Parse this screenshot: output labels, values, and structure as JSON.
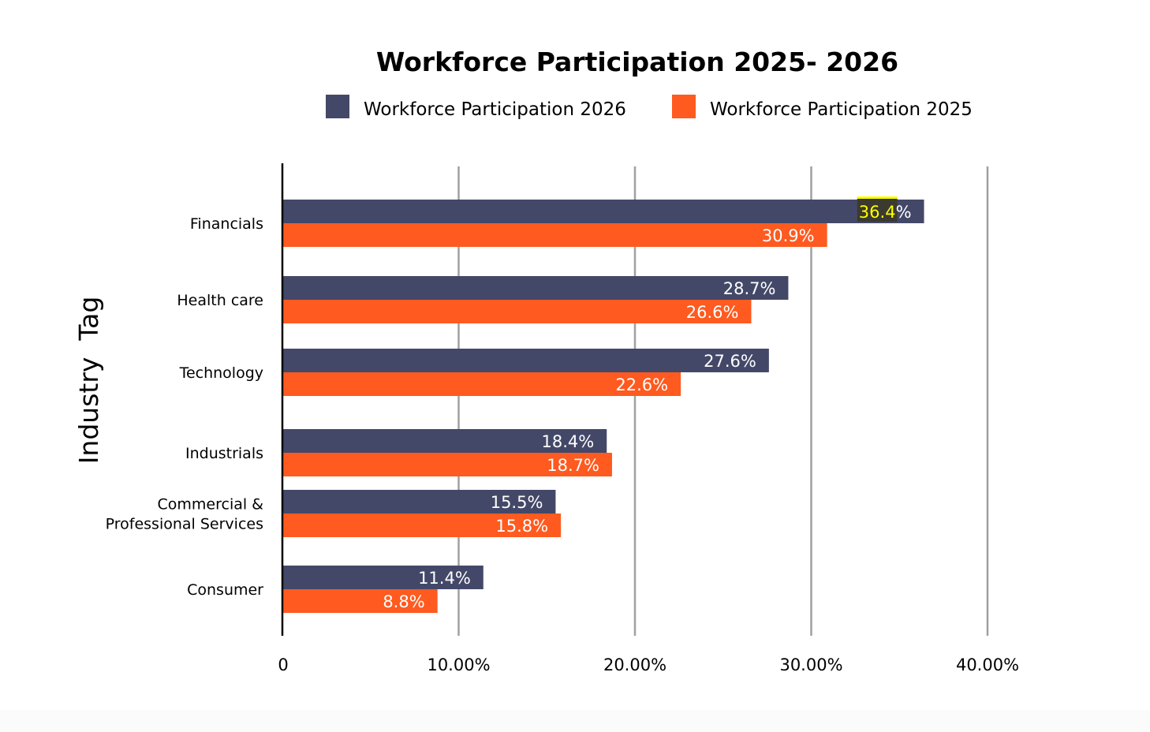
{
  "chart_data": {
    "type": "bar",
    "orientation": "horizontal",
    "title": "Workforce Participation 2025- 2026",
    "ylabel": "Industry  Tag",
    "xlabel": "",
    "categories": [
      "Financials",
      "Health care",
      "Technology",
      "Industrials",
      "Commercial &\nProfessional Services",
      "Consumer"
    ],
    "series": [
      {
        "name": "Workforce Participation 2026",
        "color": "#444868",
        "values": [
          36.4,
          28.7,
          27.6,
          18.4,
          15.5,
          11.4
        ],
        "labels": [
          "36.4%",
          "28.7%",
          "27.6%",
          "18.4%",
          "15.5%",
          "11.4%"
        ]
      },
      {
        "name": "Workforce Participation 2025",
        "color": "#ff5a1f",
        "values": [
          30.9,
          26.6,
          22.6,
          18.7,
          15.8,
          8.8
        ],
        "labels": [
          "30.9%",
          "26.6%",
          "22.6%",
          "18.7%",
          "15.8%",
          "8.8%"
        ]
      }
    ],
    "xticks": [
      0,
      10,
      20,
      30,
      40
    ],
    "xtick_labels": [
      "0",
      "10.00%",
      "20.00%",
      "30.00%",
      "40.00%"
    ],
    "xlim": [
      0,
      40
    ],
    "grid": "vertical",
    "legend_position": "top",
    "highlight": {
      "series": 0,
      "category": 0,
      "text": "36.4",
      "color": "#ffff00"
    }
  }
}
